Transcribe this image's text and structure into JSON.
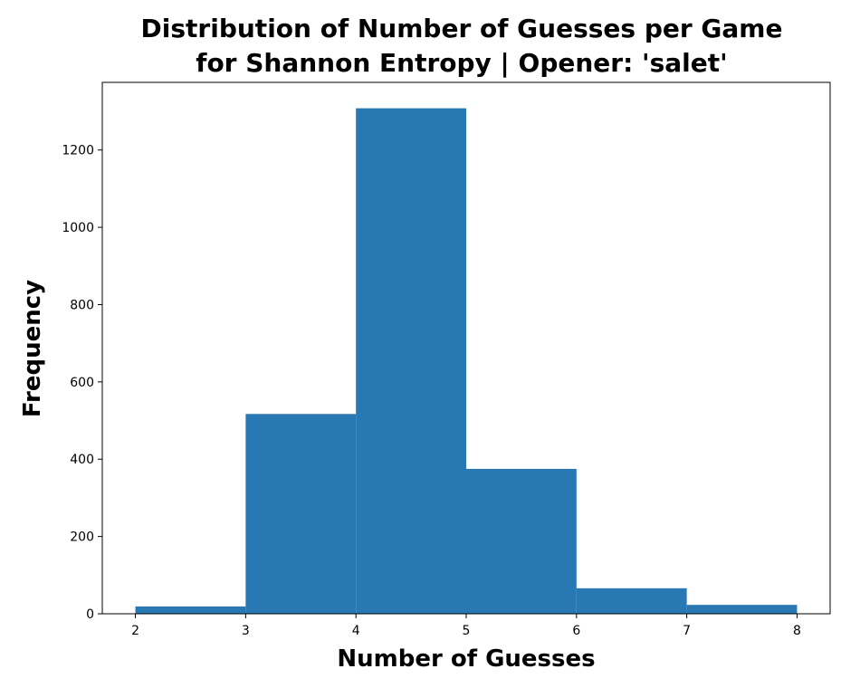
{
  "chart_data": {
    "type": "bar",
    "title_lines": [
      "Distribution of Number of Guesses per Game",
      "for Shannon Entropy | Opener: 'salet'"
    ],
    "xlabel": "Number of Guesses",
    "ylabel": "Frequency",
    "bins": [
      {
        "x0": 2,
        "x1": 3,
        "value": 19
      },
      {
        "x0": 3,
        "x1": 4,
        "value": 517
      },
      {
        "x0": 4,
        "x1": 5,
        "value": 1308
      },
      {
        "x0": 5,
        "x1": 6,
        "value": 375
      },
      {
        "x0": 6,
        "x1": 7,
        "value": 66
      },
      {
        "x0": 7,
        "x1": 8,
        "value": 23
      }
    ],
    "xlim": [
      1.7,
      8.3
    ],
    "ylim": [
      0,
      1375
    ],
    "xticks": [
      2,
      3,
      4,
      5,
      6,
      7,
      8
    ],
    "yticks": [
      0,
      200,
      400,
      600,
      800,
      1000,
      1200
    ],
    "bar_color": "#2878b4",
    "grid": false,
    "legend": "none"
  }
}
